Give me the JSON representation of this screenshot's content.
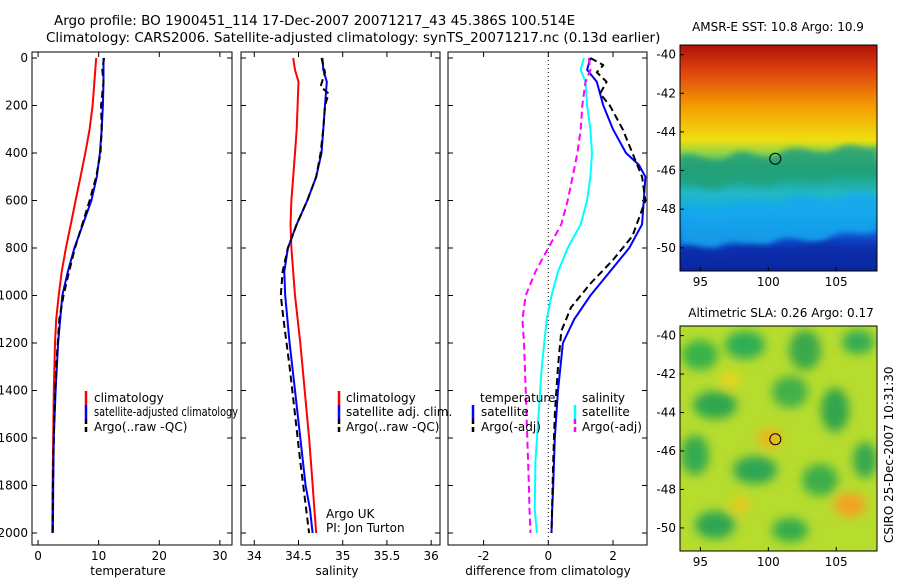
{
  "figure": {
    "title_line1": "Argo profile: BO 1900451_114 17-Dec-2007 20071217_43 45.386S 100.514E",
    "title_line2": "Climatology: CARS2006. Satellite-adjusted climatology: synTS_20071217.nc (0.13d earlier)",
    "side_label": "CSIRO 25-Dec-2007 10:31:30",
    "credit_line1": "Argo UK",
    "credit_line2": "PI: Jon Turton"
  },
  "colors": {
    "climatology": "#ff0000",
    "satellite": "#0000ff",
    "argo": "#000000",
    "temp_satellite_diff": "#00ffff",
    "argo_adj_diff": "#ff00ff"
  },
  "chart_data": [
    {
      "type": "line",
      "xlabel": "temperature",
      "ylim": [
        0,
        2050
      ],
      "y_inverted": true,
      "xlim": [
        -1,
        32
      ],
      "xticks": [
        0,
        10,
        20,
        30
      ],
      "yticks": [
        0,
        200,
        400,
        600,
        800,
        1000,
        1200,
        1400,
        1600,
        1800,
        2000
      ],
      "legend": {
        "placement": "lower-right",
        "entries": [
          "climatology",
          "satellite-adjusted climatology",
          "Argo(..raw -QC)"
        ]
      },
      "series": [
        {
          "name": "climatology",
          "color": "#ff0000",
          "dash": "solid",
          "x": [
            9.6,
            9.3,
            9.0,
            8.5,
            7.8,
            7.0,
            6.2,
            5.4,
            4.6,
            3.9,
            3.4,
            3.0,
            2.8,
            2.6,
            2.5,
            2.4,
            2.35
          ],
          "y": [
            0,
            100,
            200,
            300,
            400,
            500,
            600,
            700,
            800,
            900,
            1000,
            1100,
            1200,
            1400,
            1600,
            1800,
            2000
          ]
        },
        {
          "name": "satellite-adjusted climatology",
          "color": "#0000ff",
          "dash": "solid",
          "x": [
            10.8,
            10.8,
            10.7,
            10.5,
            10.2,
            9.7,
            8.8,
            7.4,
            6.0,
            4.9,
            4.0,
            3.3,
            2.9,
            2.6,
            2.5,
            2.45
          ],
          "y": [
            0,
            100,
            200,
            300,
            400,
            500,
            600,
            700,
            800,
            900,
            1000,
            1200,
            1400,
            1600,
            1800,
            2000
          ]
        },
        {
          "name": "Argo(..raw -QC)",
          "color": "#000000",
          "dash": "dashed",
          "x": [
            10.9,
            10.6,
            10.8,
            10.4,
            10.5,
            10.3,
            9.6,
            8.5,
            7.3,
            6.1,
            5.1,
            4.2,
            3.5,
            3.0,
            2.7,
            2.5,
            2.4
          ],
          "y": [
            0,
            50,
            100,
            200,
            300,
            400,
            500,
            600,
            700,
            800,
            900,
            1000,
            1100,
            1300,
            1500,
            1700,
            2000
          ]
        }
      ]
    },
    {
      "type": "line",
      "xlabel": "salinity",
      "ylim": [
        0,
        2050
      ],
      "y_inverted": true,
      "xlim": [
        33.85,
        36.1
      ],
      "xticks": [
        34,
        34.5,
        35,
        35.5,
        36
      ],
      "xticklabels": [
        "34",
        "34.5",
        "35",
        "35.5",
        "36"
      ],
      "legend": {
        "placement": "lower-right",
        "entries": [
          "climatology",
          "satellite adj. clim.",
          "Argo(..raw -QC)"
        ]
      },
      "series": [
        {
          "name": "climatology",
          "color": "#ff0000",
          "dash": "solid",
          "x": [
            34.44,
            34.46,
            34.5,
            34.49,
            34.48,
            34.46,
            34.44,
            34.42,
            34.41,
            34.42,
            34.46,
            34.52,
            34.57,
            34.62,
            34.65,
            34.68,
            34.7
          ],
          "y": [
            0,
            50,
            100,
            200,
            300,
            400,
            500,
            600,
            700,
            800,
            1000,
            1200,
            1400,
            1600,
            1750,
            1900,
            2000
          ]
        },
        {
          "name": "satellite adj. clim.",
          "color": "#0000ff",
          "dash": "solid",
          "x": [
            34.77,
            34.78,
            34.82,
            34.8,
            34.78,
            34.76,
            34.7,
            34.6,
            34.48,
            34.38,
            34.34,
            34.35,
            34.4,
            34.46,
            34.52,
            34.58,
            34.63,
            34.66
          ],
          "y": [
            0,
            50,
            100,
            200,
            300,
            400,
            500,
            600,
            700,
            800,
            900,
            1000,
            1200,
            1400,
            1600,
            1800,
            1900,
            2000
          ]
        },
        {
          "name": "Argo(..raw -QC)",
          "color": "#000000",
          "dash": "dashed",
          "x": [
            34.76,
            34.8,
            34.75,
            34.84,
            34.8,
            34.78,
            34.75,
            34.7,
            34.6,
            34.48,
            34.38,
            34.32,
            34.3,
            34.33,
            34.4,
            34.46,
            34.52,
            34.57,
            34.62
          ],
          "y": [
            0,
            60,
            120,
            150,
            200,
            300,
            400,
            500,
            600,
            700,
            800,
            900,
            1000,
            1100,
            1300,
            1500,
            1700,
            1850,
            2000
          ]
        }
      ]
    },
    {
      "type": "line",
      "xlabel": "difference from climatology",
      "ylim": [
        0,
        2050
      ],
      "y_inverted": true,
      "xlim": [
        -3.1,
        3.05
      ],
      "xticks": [
        -2,
        0,
        2
      ],
      "zero_line": "dotted",
      "legend": {
        "placement": "lower-center",
        "left_title": "temperature",
        "right_title": "salinity",
        "left_entries": [
          "satellite",
          "Argo(-adj)"
        ],
        "right_entries": [
          "satellite",
          "Argo(-adj)"
        ]
      },
      "series": [
        {
          "name": "temperature satellite",
          "color": "#0000ff",
          "dash": "solid",
          "x": [
            1.3,
            1.2,
            1.5,
            1.7,
            2.0,
            2.4,
            2.8,
            3.0,
            2.9,
            2.5,
            1.9,
            1.3,
            0.8,
            0.45,
            0.3,
            0.2,
            0.15,
            0.12,
            0.1
          ],
          "y": [
            0,
            50,
            100,
            200,
            300,
            400,
            450,
            500,
            700,
            800,
            900,
            1000,
            1100,
            1200,
            1400,
            1600,
            1800,
            1900,
            2000
          ]
        },
        {
          "name": "temperature Argo(-adj)",
          "color": "#000000",
          "dash": "dashed",
          "x": [
            1.3,
            1.7,
            1.5,
            1.8,
            1.6,
            1.9,
            2.3,
            2.6,
            2.9,
            3.0,
            2.6,
            2.0,
            1.3,
            0.7,
            0.4,
            0.3,
            0.2,
            0.15,
            0.1
          ],
          "y": [
            0,
            30,
            60,
            100,
            150,
            200,
            300,
            400,
            500,
            600,
            750,
            850,
            950,
            1050,
            1150,
            1300,
            1500,
            1700,
            2000
          ]
        },
        {
          "name": "salinity satellite",
          "color": "#00ffff",
          "dash": "solid",
          "x": [
            1.1,
            1.0,
            1.15,
            1.2,
            1.3,
            1.35,
            1.3,
            1.2,
            1.0,
            0.6,
            0.3,
            0.1,
            -0.05,
            -0.2,
            -0.3,
            -0.4,
            -0.42,
            -0.35
          ],
          "y": [
            0,
            50,
            100,
            200,
            300,
            400,
            500,
            600,
            700,
            800,
            900,
            1000,
            1100,
            1300,
            1500,
            1700,
            1900,
            2000
          ]
        },
        {
          "name": "salinity Argo(-adj)",
          "color": "#ff00ff",
          "dash": "dashed",
          "x": [
            1.25,
            1.3,
            1.15,
            1.05,
            1.0,
            0.9,
            0.75,
            0.6,
            0.4,
            0.0,
            -0.4,
            -0.7,
            -0.8,
            -0.75,
            -0.7,
            -0.65,
            -0.6,
            -0.58,
            -0.55
          ],
          "y": [
            0,
            50,
            100,
            200,
            300,
            400,
            500,
            600,
            700,
            800,
            900,
            1000,
            1100,
            1200,
            1400,
            1600,
            1800,
            1900,
            2000
          ]
        }
      ]
    },
    {
      "type": "heatmap",
      "title": "AMSR-E SST: 10.8 Argo: 10.9",
      "xlim": [
        93.5,
        108
      ],
      "ylim": [
        -51.2,
        -39.5
      ],
      "xticks": [
        95,
        100,
        105
      ],
      "yticks": [
        -40,
        -42,
        -44,
        -46,
        -48,
        -50
      ],
      "marker": {
        "lon": 100.514,
        "lat": -45.386
      },
      "colormap": "jet"
    },
    {
      "type": "heatmap",
      "title": "Altimetric SLA: 0.26 Argo: 0.17",
      "xlim": [
        93.5,
        108
      ],
      "ylim": [
        -51.2,
        -39.5
      ],
      "xticks": [
        95,
        100,
        105
      ],
      "yticks": [
        -40,
        -42,
        -44,
        -46,
        -48,
        -50
      ],
      "marker": {
        "lon": 100.514,
        "lat": -45.386
      },
      "colormap": "jet"
    }
  ]
}
